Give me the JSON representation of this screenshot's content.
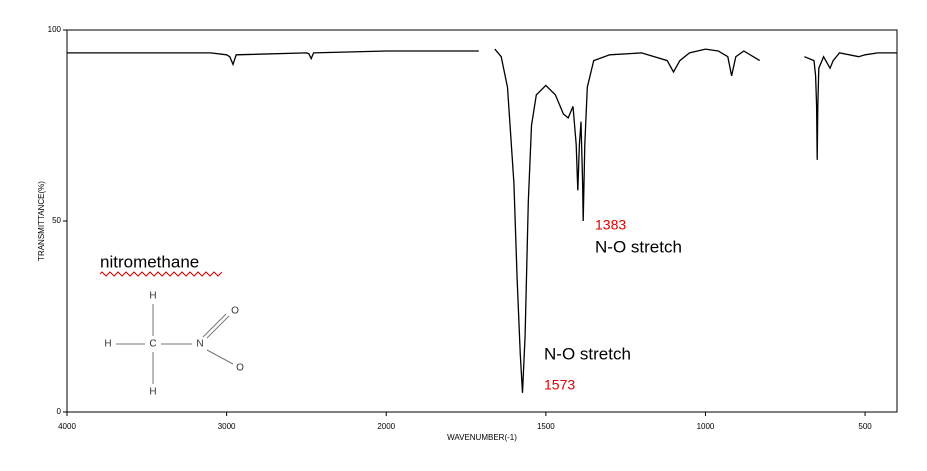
{
  "chart_data": {
    "type": "line",
    "xlabel": "WAVENUMBER(-1)",
    "ylabel": "TRANSMITTANCE(%)",
    "xlim": [
      4000,
      400
    ],
    "ylim": [
      0,
      100
    ],
    "xticks": [
      4000,
      3000,
      2000,
      1500,
      1000,
      500
    ],
    "yticks": [
      0,
      50,
      100
    ],
    "xscale_break": 2000,
    "x": [
      4000,
      3500,
      3100,
      3000,
      2980,
      2960,
      2940,
      2500,
      2485,
      2470,
      2455,
      2000,
      1710,
      1705,
      1660,
      1640,
      1620,
      1600,
      1590,
      1580,
      1573,
      1565,
      1555,
      1545,
      1530,
      1500,
      1470,
      1445,
      1430,
      1415,
      1405,
      1400,
      1395,
      1390,
      1385,
      1383,
      1378,
      1370,
      1350,
      1300,
      1200,
      1120,
      1100,
      1080,
      1050,
      1000,
      960,
      930,
      918,
      905,
      880,
      830,
      760,
      690,
      660,
      655,
      652,
      650,
      648,
      645,
      630,
      610,
      600,
      580,
      520,
      500,
      460,
      420,
      400
    ],
    "series": [
      {
        "name": "nitromethane",
        "color": "#000000",
        "values": [
          94,
          94,
          94,
          93.5,
          93,
          91,
          93.5,
          94,
          93.8,
          92.5,
          94,
          94.5,
          94.5,
          null,
          95,
          93,
          85,
          60,
          35,
          15,
          5,
          20,
          55,
          75,
          83,
          85.5,
          83,
          78,
          77,
          80,
          70,
          58,
          70,
          76,
          60,
          50,
          70,
          85,
          92,
          93.5,
          94,
          92,
          89,
          92,
          94,
          95,
          94.5,
          93,
          88,
          93,
          94.5,
          92,
          null,
          93,
          92,
          88,
          80,
          66,
          80,
          90,
          93,
          90,
          92,
          94,
          93,
          93.5,
          94,
          94,
          94
        ]
      }
    ],
    "annotations": [
      "1383",
      "N-O stretch",
      "N-O stretch",
      "1573"
    ],
    "molecule": {
      "name": "nitromethane",
      "atoms": [
        "H",
        "H",
        "C",
        "N",
        "O",
        "O",
        "H"
      ]
    }
  }
}
